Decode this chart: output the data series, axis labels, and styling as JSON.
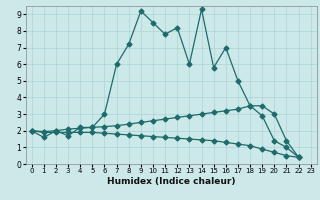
{
  "title": "",
  "xlabel": "Humidex (Indice chaleur)",
  "bg_color": "#cce8e8",
  "line_color": "#1e6b6b",
  "grid_color": "#aad4d4",
  "xlim": [
    -0.5,
    23.5
  ],
  "ylim": [
    0,
    9.5
  ],
  "xticks": [
    0,
    1,
    2,
    3,
    4,
    5,
    6,
    7,
    8,
    9,
    10,
    11,
    12,
    13,
    14,
    15,
    16,
    17,
    18,
    19,
    20,
    21,
    22,
    23
  ],
  "yticks": [
    0,
    1,
    2,
    3,
    4,
    5,
    6,
    7,
    8,
    9
  ],
  "line1_x": [
    0,
    1,
    2,
    3,
    4,
    5,
    6,
    7,
    8,
    9,
    10,
    11,
    12,
    13,
    14,
    15,
    16,
    17,
    18,
    19,
    20,
    21,
    22
  ],
  "line1_y": [
    2.0,
    1.6,
    2.0,
    1.7,
    2.2,
    2.2,
    3.0,
    6.0,
    7.2,
    9.2,
    8.5,
    7.8,
    8.2,
    6.0,
    9.3,
    5.8,
    7.0,
    5.0,
    3.5,
    2.9,
    1.4,
    1.0,
    0.4
  ],
  "line2_x": [
    0,
    1,
    2,
    3,
    4,
    5,
    6,
    7,
    8,
    9,
    10,
    11,
    12,
    13,
    14,
    15,
    16,
    17,
    18,
    19,
    20,
    21,
    22
  ],
  "line2_y": [
    2.0,
    1.9,
    1.9,
    1.9,
    1.9,
    1.9,
    1.85,
    1.8,
    1.75,
    1.7,
    1.65,
    1.6,
    1.55,
    1.5,
    1.45,
    1.4,
    1.3,
    1.2,
    1.1,
    0.9,
    0.7,
    0.5,
    0.4
  ],
  "line3_x": [
    0,
    1,
    2,
    3,
    4,
    5,
    6,
    7,
    8,
    9,
    10,
    11,
    12,
    13,
    14,
    15,
    16,
    17,
    18,
    19,
    20,
    21,
    22
  ],
  "line3_y": [
    2.0,
    1.95,
    2.0,
    2.1,
    2.15,
    2.2,
    2.25,
    2.3,
    2.4,
    2.5,
    2.6,
    2.7,
    2.8,
    2.9,
    3.0,
    3.1,
    3.2,
    3.3,
    3.5,
    3.5,
    3.0,
    1.4,
    0.4
  ]
}
